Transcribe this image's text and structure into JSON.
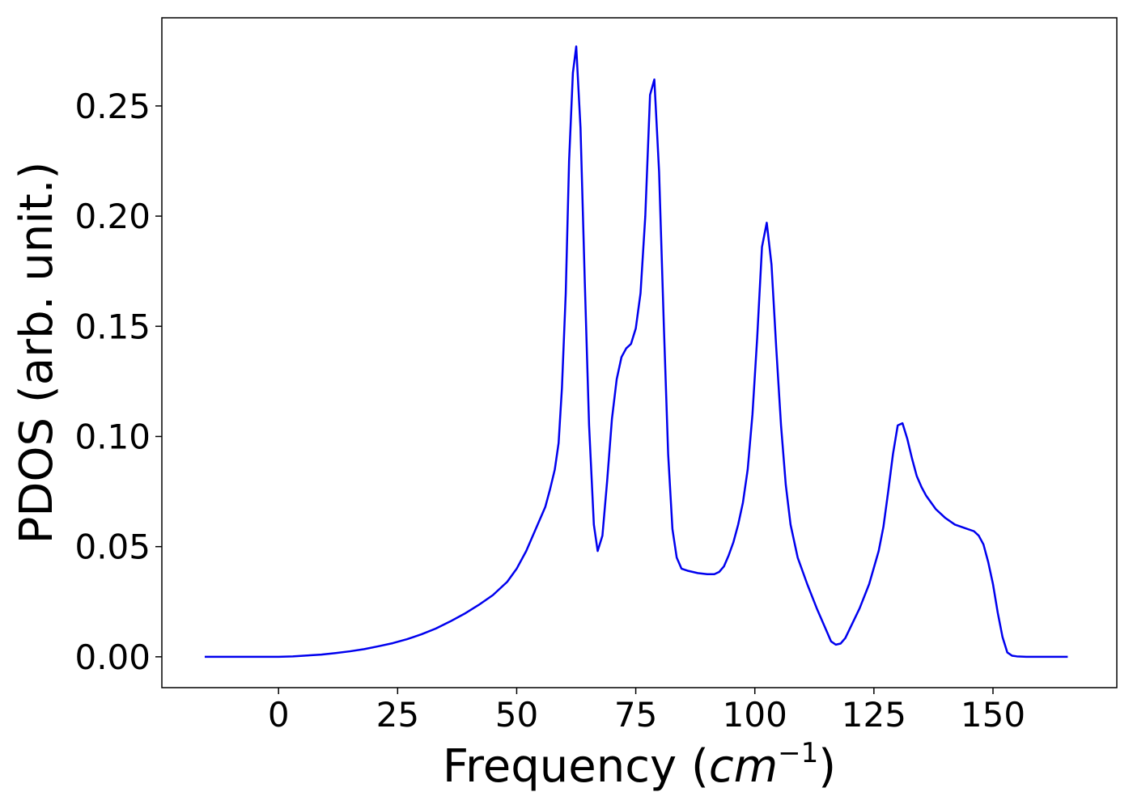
{
  "chart_data": {
    "type": "line",
    "title": "",
    "xlabel_prefix": "Frequency (",
    "xlabel_unit": "cm",
    "xlabel_exp": "−1",
    "xlabel_suffix": ")",
    "ylabel": "PDOS (arb. unit.)",
    "xlim": [
      -24.5,
      176
    ],
    "ylim": [
      -0.014,
      0.29
    ],
    "xticks": [
      0,
      25,
      50,
      75,
      100,
      125,
      150
    ],
    "xtick_labels": [
      "0",
      "25",
      "50",
      "75",
      "100",
      "125",
      "150"
    ],
    "yticks": [
      0.0,
      0.05,
      0.1,
      0.15,
      0.2,
      0.25
    ],
    "ytick_labels": [
      "0.00",
      "0.05",
      "0.10",
      "0.15",
      "0.20",
      "0.25"
    ],
    "grid": false,
    "series": [
      {
        "color": "#0000ee",
        "x": [
          -15.5,
          -10,
          -5,
          0,
          3,
          6,
          9,
          12,
          15,
          18,
          21,
          24,
          27,
          30,
          33,
          36,
          39,
          42,
          45,
          48,
          50,
          52,
          54,
          56,
          57,
          58,
          58.8,
          59.5,
          60.3,
          61,
          61.8,
          62.5,
          63.4,
          64.3,
          65.2,
          66.2,
          67,
          68,
          69,
          70,
          71,
          72,
          73,
          74,
          75,
          76,
          77,
          78,
          78.9,
          79.9,
          80.9,
          81.8,
          82.7,
          83.6,
          84.6,
          86,
          88,
          90,
          91.5,
          92.5,
          93.5,
          94.5,
          95.5,
          96.5,
          97.5,
          98.5,
          99.5,
          100.5,
          101.5,
          102.5,
          103.5,
          104.5,
          105.5,
          106.5,
          107.5,
          109,
          111,
          113,
          115,
          116,
          117,
          118,
          119,
          120,
          122,
          124,
          126,
          127,
          128,
          129,
          130,
          131,
          132,
          133,
          134,
          135,
          136,
          138,
          140,
          142,
          144,
          146,
          147,
          148,
          149,
          150,
          151,
          152,
          153,
          154,
          155,
          157,
          160,
          165.7
        ],
        "y": [
          0.0,
          0.0,
          0.0,
          0.0,
          0.0002,
          0.0006,
          0.001,
          0.0017,
          0.0025,
          0.0035,
          0.0048,
          0.0062,
          0.008,
          0.0102,
          0.0128,
          0.016,
          0.0195,
          0.0235,
          0.028,
          0.034,
          0.04,
          0.048,
          0.058,
          0.068,
          0.076,
          0.085,
          0.097,
          0.122,
          0.165,
          0.225,
          0.265,
          0.277,
          0.24,
          0.17,
          0.105,
          0.06,
          0.048,
          0.055,
          0.08,
          0.108,
          0.126,
          0.136,
          0.14,
          0.142,
          0.149,
          0.165,
          0.2,
          0.255,
          0.262,
          0.22,
          0.15,
          0.092,
          0.058,
          0.045,
          0.04,
          0.039,
          0.038,
          0.0375,
          0.0375,
          0.0385,
          0.041,
          0.046,
          0.052,
          0.06,
          0.07,
          0.085,
          0.11,
          0.145,
          0.186,
          0.197,
          0.178,
          0.14,
          0.105,
          0.078,
          0.06,
          0.045,
          0.033,
          0.022,
          0.012,
          0.007,
          0.0055,
          0.006,
          0.0085,
          0.013,
          0.022,
          0.033,
          0.048,
          0.059,
          0.075,
          0.092,
          0.105,
          0.106,
          0.099,
          0.09,
          0.082,
          0.077,
          0.073,
          0.067,
          0.063,
          0.06,
          0.0585,
          0.057,
          0.055,
          0.051,
          0.043,
          0.033,
          0.02,
          0.009,
          0.002,
          0.0005,
          0.0002,
          0.0,
          0.0,
          0.0
        ]
      }
    ]
  }
}
